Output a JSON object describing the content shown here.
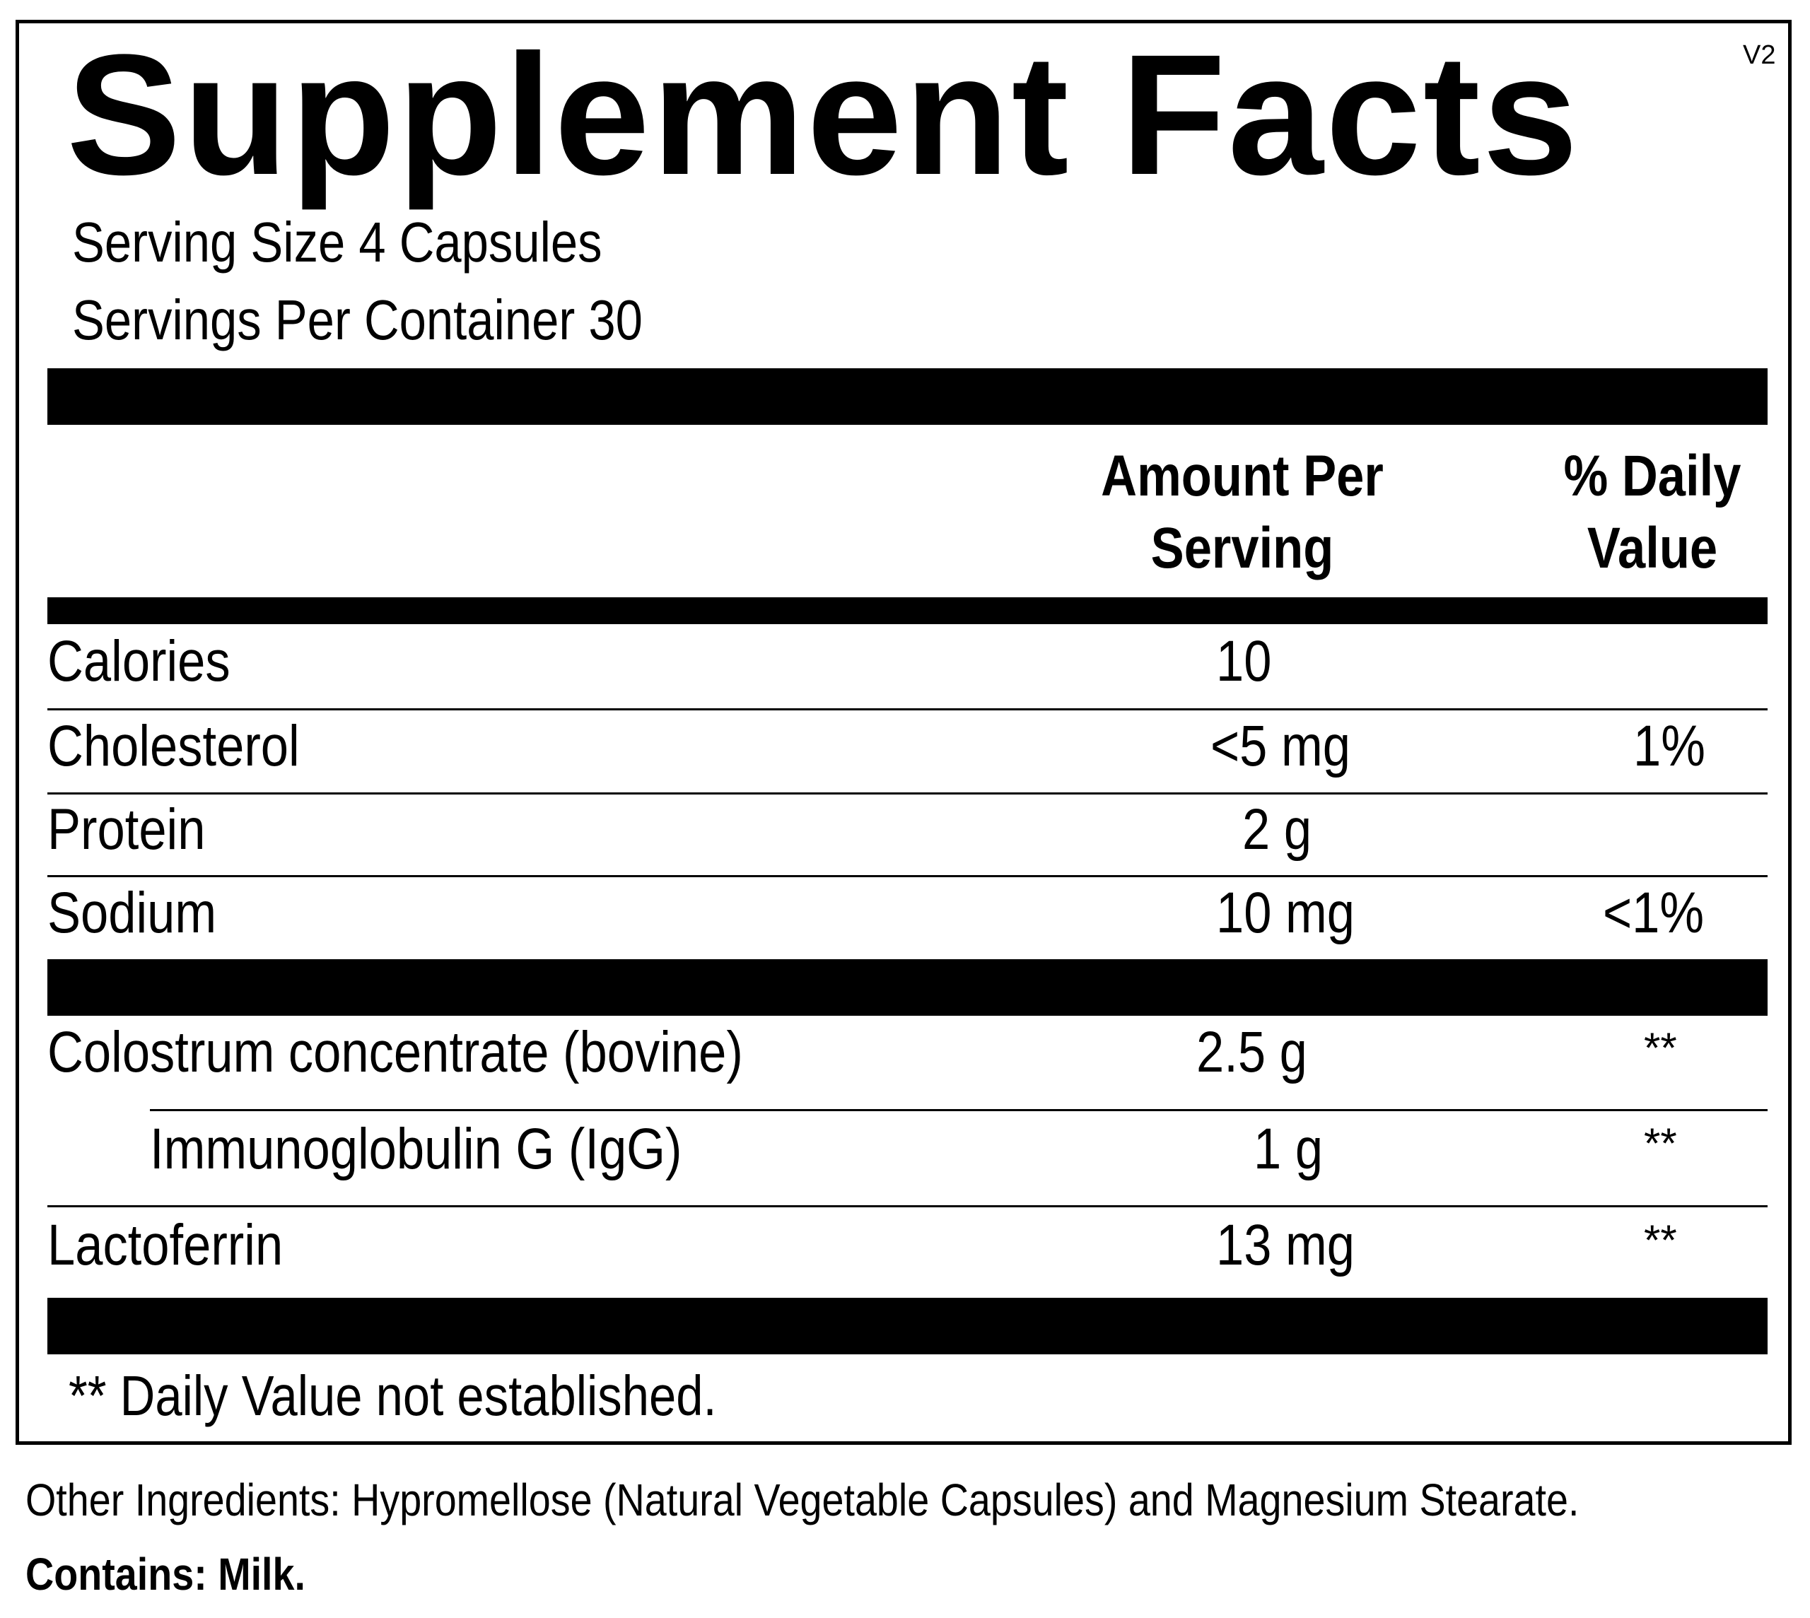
{
  "label": {
    "title": "Supplement Facts",
    "version": "V2",
    "serving_size": "Serving Size 4 Capsules",
    "servings_per_container": "Servings Per Container  30",
    "header_amount_line1": "Amount Per",
    "header_amount_line2": "Serving",
    "header_dv_line1": "% Daily",
    "header_dv_line2": "Value",
    "rows": [
      {
        "name": "Calories",
        "amount": "10",
        "dv": ""
      },
      {
        "name": "Cholesterol",
        "amount": "<5 mg",
        "dv": "1%"
      },
      {
        "name": "Protein",
        "amount": "2 g",
        "dv": ""
      },
      {
        "name": "Sodium",
        "amount": "10 mg",
        "dv": "<1%"
      },
      {
        "name": "Colostrum concentrate (bovine)",
        "amount": "2.5 g",
        "dv": "**"
      },
      {
        "name": "Immunoglobulin G (IgG)",
        "amount": "1 g",
        "dv": "**"
      },
      {
        "name": "Lactoferrin",
        "amount": "13 mg",
        "dv": "**"
      }
    ],
    "footnote": "** Daily Value not established."
  },
  "other_ingredients": "Other Ingredients: Hypromellose (Natural Vegetable Capsules) and Magnesium Stearate.",
  "contains": "Contains: Milk."
}
